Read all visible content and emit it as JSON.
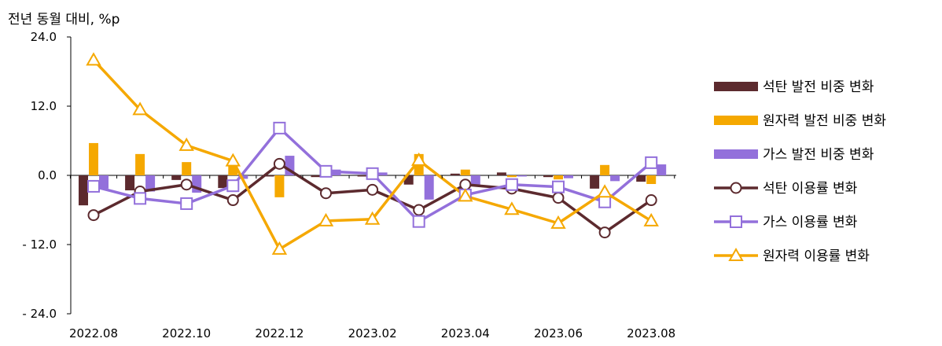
{
  "chart_data": {
    "type": "bar+line",
    "title": "",
    "ylabel": "전년 동월 대비, %p",
    "xlabel": "",
    "ylim": [
      -24,
      24
    ],
    "yticks": [
      24,
      12,
      0,
      -12,
      -24
    ],
    "ytick_labels": [
      "24.0",
      "12.0",
      "0.0",
      "- 12.0",
      "- 24.0"
    ],
    "categories": [
      "2022.08",
      "2022.09",
      "2022.10",
      "2022.11",
      "2022.12",
      "2023.01",
      "2023.02",
      "2023.03",
      "2023.04",
      "2023.05",
      "2023.06",
      "2023.07",
      "2023.08"
    ],
    "xtick_labels": [
      {
        "index": 0,
        "label": "2022.08"
      },
      {
        "index": 2,
        "label": "2022.10"
      },
      {
        "index": 4,
        "label": "2022.12"
      },
      {
        "index": 6,
        "label": "2023.02"
      },
      {
        "index": 8,
        "label": "2023.04"
      },
      {
        "index": 10,
        "label": "2023.06"
      },
      {
        "index": 12,
        "label": "2023.08"
      }
    ],
    "grid": false,
    "legend_position": "right",
    "bar_series": [
      {
        "name": "석탄 발전 비중 변화",
        "color": "#5c2a2e",
        "values": [
          -5.2,
          -2.6,
          -0.8,
          -2.2,
          -0.2,
          -0.3,
          -0.2,
          -1.6,
          0.3,
          0.5,
          -0.3,
          -2.3,
          -1.1
        ]
      },
      {
        "name": "원자력 발전 비중 변화",
        "color": "#f5a800",
        "values": [
          5.6,
          3.7,
          2.3,
          1.6,
          -3.8,
          0.4,
          0.3,
          3.7,
          1.0,
          -0.3,
          -0.7,
          1.8,
          -1.5
        ]
      },
      {
        "name": "가스 발전 비중 변화",
        "color": "#9370db",
        "values": [
          -2.3,
          -2.8,
          -3.0,
          -0.6,
          3.4,
          1.0,
          0.5,
          -4.2,
          -1.6,
          -0.2,
          -0.5,
          -1.0,
          1.9
        ]
      }
    ],
    "line_series": [
      {
        "name": "석탄 이용률 변화",
        "color": "#5c2a2e",
        "marker": "circle",
        "values": [
          -6.9,
          -2.8,
          -1.6,
          -4.3,
          2.0,
          -3.1,
          -2.5,
          -6.0,
          -1.6,
          -2.3,
          -3.9,
          -9.9,
          -4.3
        ]
      },
      {
        "name": "가스 이용률 변화",
        "color": "#9370db",
        "marker": "square",
        "values": [
          -1.9,
          -4.0,
          -4.9,
          -1.8,
          8.2,
          0.7,
          0.3,
          -8.0,
          -3.4,
          -1.6,
          -2.0,
          -4.6,
          2.2
        ]
      },
      {
        "name": "원자력 이용률 변화",
        "color": "#f5a800",
        "marker": "triangle",
        "values": [
          20.0,
          11.4,
          5.2,
          2.5,
          -12.8,
          -7.9,
          -7.6,
          2.6,
          -3.6,
          -5.9,
          -8.3,
          -2.9,
          -7.9
        ]
      }
    ]
  }
}
